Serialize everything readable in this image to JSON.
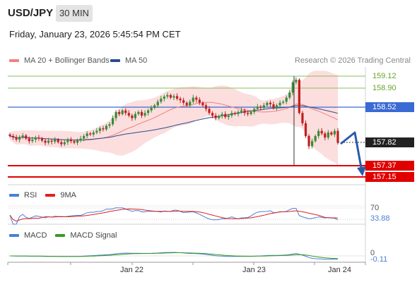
{
  "header": {
    "symbol": "USD/JPY",
    "timeframe": "30 MIN",
    "datetime": "Friday, January 23, 2026 5:45:54 PM CET"
  },
  "legend": {
    "items": [
      {
        "label": "MA 20 + Bollinger Bands",
        "color": "#f08080"
      },
      {
        "label": "MA 50",
        "color": "#2b4c8c"
      }
    ],
    "research": "Research © 2026 Trading Central"
  },
  "price_levels": {
    "resistance_2": "159.12",
    "resistance_1": "158.90",
    "pivot": "158.52",
    "last_price": "157.82",
    "support_1": "157.37",
    "support_2": "157.15"
  },
  "rsi_panel": {
    "label": "RSI",
    "ma_label": "9MA",
    "rsi_color": "#4a7fd4",
    "ma_color": "#e02020",
    "level_70": "70",
    "value": "33.88"
  },
  "macd_panel": {
    "label": "MACD",
    "signal_label": "MACD Signal",
    "macd_color": "#4a7fd4",
    "signal_color": "#3a9a20",
    "zero_label": "0",
    "value": "-0.11"
  },
  "x_axis": {
    "labels": [
      "Jan 22",
      "Jan 23",
      "Jan 24"
    ]
  },
  "colors": {
    "up_candle": "#3a8a3a",
    "down_candle": "#c02020",
    "pivot": "#3a6ad4",
    "support": "#e00000",
    "resistance": "#8abf5a",
    "bollinger_fill": "#fbd8d8"
  },
  "chart_data": {
    "type": "candlestick",
    "title": "",
    "ylim": [
      157.0,
      159.2
    ],
    "close_series": [
      157.95,
      157.92,
      157.88,
      157.93,
      157.96,
      157.9,
      157.85,
      157.88,
      157.92,
      157.9,
      157.86,
      157.82,
      157.86,
      157.84,
      157.88,
      157.83,
      157.79,
      157.83,
      157.88,
      157.85,
      157.82,
      157.86,
      157.9,
      157.95,
      158.0,
      157.98,
      158.02,
      158.05,
      158.1,
      158.08,
      158.15,
      158.18,
      158.3,
      158.42,
      158.38,
      158.45,
      158.4,
      158.35,
      158.3,
      158.38,
      158.42,
      158.35,
      158.4,
      158.45,
      158.5,
      158.55,
      158.62,
      158.68,
      158.72,
      158.75,
      158.7,
      158.73,
      158.68,
      158.65,
      158.6,
      158.55,
      158.62,
      158.7,
      158.66,
      158.6,
      158.55,
      158.48,
      158.4,
      158.35,
      158.3,
      158.34,
      158.38,
      158.32,
      158.35,
      158.4,
      158.38,
      158.42,
      158.45,
      158.4,
      158.38,
      158.42,
      158.48,
      158.52,
      158.5,
      158.55,
      158.6,
      158.57,
      158.5,
      158.55,
      158.6,
      158.62,
      158.7,
      158.8,
      159.0,
      159.05,
      158.4,
      158.2,
      157.95,
      157.75,
      157.85,
      157.95,
      158.05,
      158.0,
      157.92,
      158.02,
      157.98,
      158.05,
      157.82
    ]
  }
}
